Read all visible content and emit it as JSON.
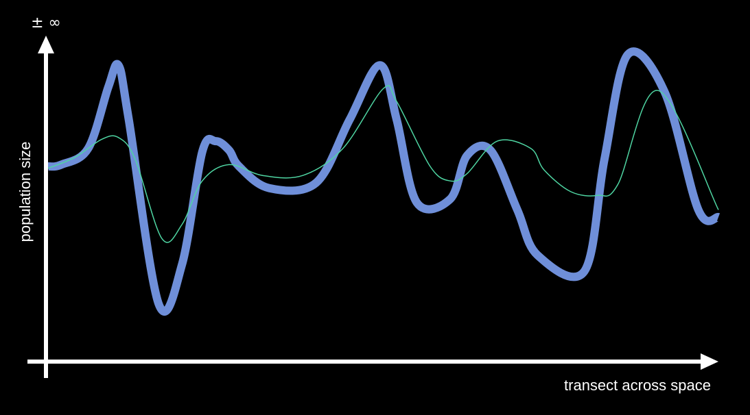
{
  "chart_data": {
    "type": "line",
    "title": "",
    "xlabel": "transect across space",
    "ylabel": "population size",
    "y_top_label": "± ∞",
    "grid": false,
    "legend": "none",
    "xlim": [
      0,
      100
    ],
    "ylim": [
      -100,
      100
    ],
    "series": [
      {
        "color": "#6f8fd9",
        "x": [
          0,
          2,
          6,
          9,
          10.5,
          12,
          16.5,
          20,
          23,
          25,
          27,
          28.5,
          33,
          40,
          45,
          49.5,
          52,
          55,
          60,
          62.5,
          66,
          70,
          73,
          80,
          83,
          86.5,
          92,
          97,
          100
        ],
        "y": [
          14,
          15,
          24,
          58,
          70,
          41,
          -62,
          -40,
          22,
          28,
          23,
          14,
          2,
          5,
          40,
          70,
          40,
          -6,
          -4,
          20,
          23,
          -10,
          -35,
          -44,
          18,
          76,
          55,
          -10,
          -14
        ]
      },
      {
        "color": "#4fd6a3",
        "x": [
          0,
          4,
          8,
          10.5,
          13,
          17,
          20,
          23,
          27,
          32,
          38,
          44,
          50,
          52,
          57,
          60,
          62.5,
          67,
          72,
          74,
          78,
          82,
          85,
          91,
          100
        ],
        "y": [
          13,
          19,
          29,
          30,
          18,
          -26,
          -18,
          6,
          15,
          9,
          9,
          24,
          57,
          50,
          14,
          6,
          10,
          28,
          24,
          12,
          0,
          -2,
          4,
          56,
          -10
        ]
      }
    ]
  }
}
